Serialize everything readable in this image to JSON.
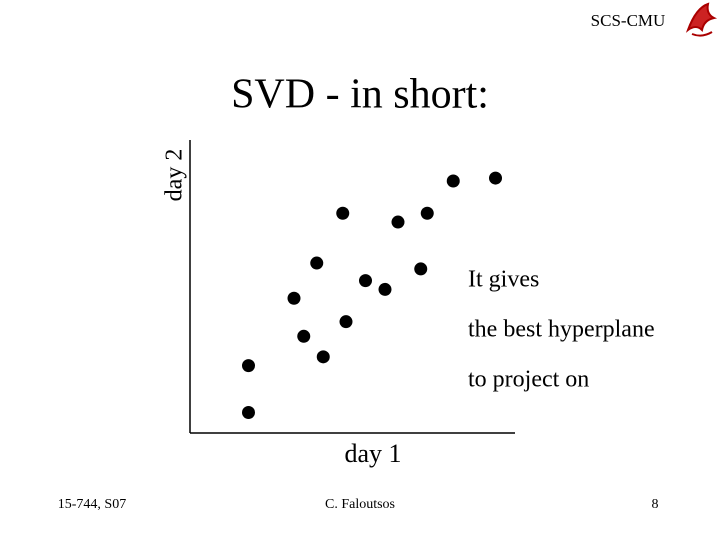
{
  "header": {
    "org": "SCS-CMU"
  },
  "title": "SVD - in short:",
  "chart_data": {
    "type": "scatter",
    "x_label": "day 1",
    "y_label": "day 2",
    "x": [
      1.8,
      1.8,
      3.5,
      4.1,
      4.8,
      3.2,
      3.9,
      5.4,
      6.0,
      7.1,
      4.7,
      6.4,
      7.3,
      8.1,
      9.4
    ],
    "y": [
      0.7,
      2.3,
      3.3,
      2.6,
      3.8,
      4.6,
      5.8,
      5.2,
      4.9,
      5.6,
      7.5,
      7.2,
      7.5,
      8.6,
      8.7
    ],
    "xlim": [
      0,
      10
    ],
    "ylim": [
      0,
      10
    ],
    "color": "#000000",
    "annotations": [
      "It gives",
      "the best hyperplane",
      "to project on"
    ]
  },
  "footer": {
    "course": "15-744, S07",
    "author": "C. Faloutsos",
    "page": 8
  }
}
